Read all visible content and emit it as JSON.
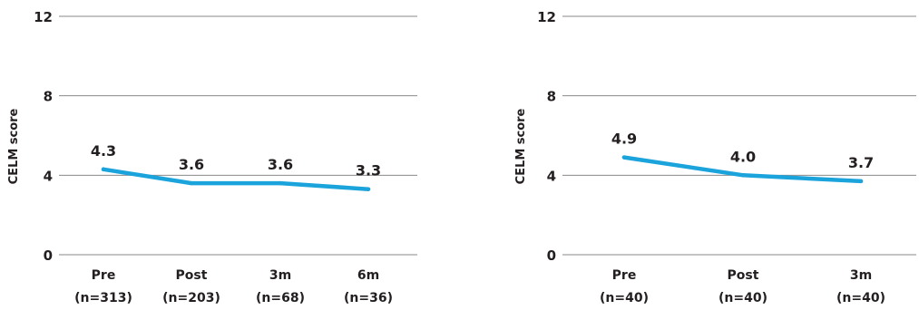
{
  "chart_data": [
    {
      "type": "line",
      "title": "",
      "ylabel": "CELM score",
      "ylim": [
        0,
        12
      ],
      "yticks": [
        "0",
        "4",
        "8",
        "12"
      ],
      "grid": true,
      "categories": [
        [
          "Pre",
          "(n=313)"
        ],
        [
          "Post",
          "(n=203)"
        ],
        [
          "3m",
          "(n=68)"
        ],
        [
          "6m",
          "(n=36)"
        ]
      ],
      "series": [
        {
          "values": [
            4.3,
            3.6,
            3.6,
            3.3
          ],
          "labels": [
            "4.3",
            "3.6",
            "3.6",
            "3.3"
          ],
          "color": "#1ba3dc"
        }
      ]
    },
    {
      "type": "line",
      "title": "",
      "ylabel": "CELM score",
      "ylim": [
        0,
        12
      ],
      "yticks": [
        "0",
        "4",
        "8",
        "12"
      ],
      "grid": true,
      "categories": [
        [
          "Pre",
          "(n=40)"
        ],
        [
          "Post",
          "(n=40)"
        ],
        [
          "3m",
          "(n=40)"
        ]
      ],
      "series": [
        {
          "values": [
            4.9,
            4.0,
            3.7
          ],
          "labels": [
            "4.9",
            "4.0",
            "3.7"
          ],
          "color": "#1ba3dc"
        }
      ]
    }
  ]
}
